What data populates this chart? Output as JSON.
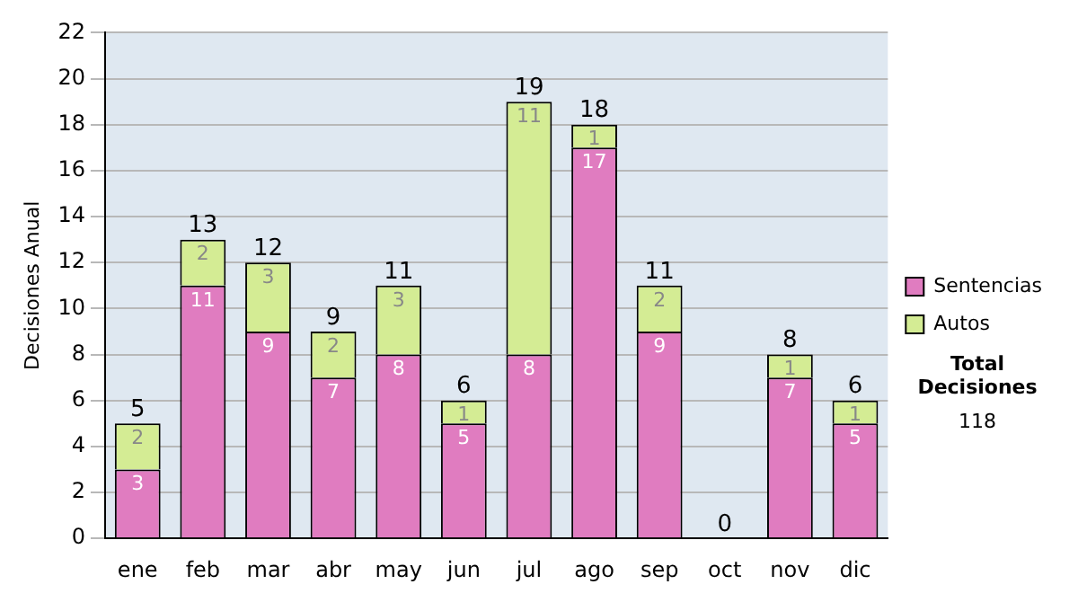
{
  "chart_data": {
    "type": "bar",
    "ylabel": "Decisiones Anual",
    "categories": [
      "ene",
      "feb",
      "mar",
      "abr",
      "may",
      "jun",
      "jul",
      "ago",
      "sep",
      "oct",
      "nov",
      "dic"
    ],
    "series": [
      {
        "name": "Sentencias",
        "color": "#e07cc0",
        "values": [
          3,
          11,
          9,
          7,
          8,
          5,
          8,
          17,
          9,
          0,
          7,
          5
        ],
        "value_labels": [
          "3",
          "11",
          "9",
          "7",
          "8",
          "5",
          "8",
          "17",
          "9",
          null,
          "7",
          "5"
        ]
      },
      {
        "name": "Autos",
        "color": "#d4ec94",
        "values": [
          2,
          2,
          3,
          2,
          3,
          1,
          11,
          1,
          2,
          0,
          1,
          1
        ],
        "value_labels": [
          "2",
          "2",
          "3",
          "2",
          "3",
          "1",
          "11",
          "1",
          "2",
          null,
          "1",
          "1"
        ]
      }
    ],
    "stacked": true,
    "totals": [
      "5",
      "13",
      "12",
      "9",
      "11",
      "6",
      "19",
      "18",
      "11",
      "0",
      "8",
      "6"
    ],
    "ylim": [
      0,
      22
    ],
    "yticks": [
      0,
      2,
      4,
      6,
      8,
      10,
      12,
      14,
      16,
      18,
      20,
      22
    ],
    "grid": "y",
    "legend": "right",
    "annotations": [
      "Total Decisiones",
      "118"
    ]
  }
}
